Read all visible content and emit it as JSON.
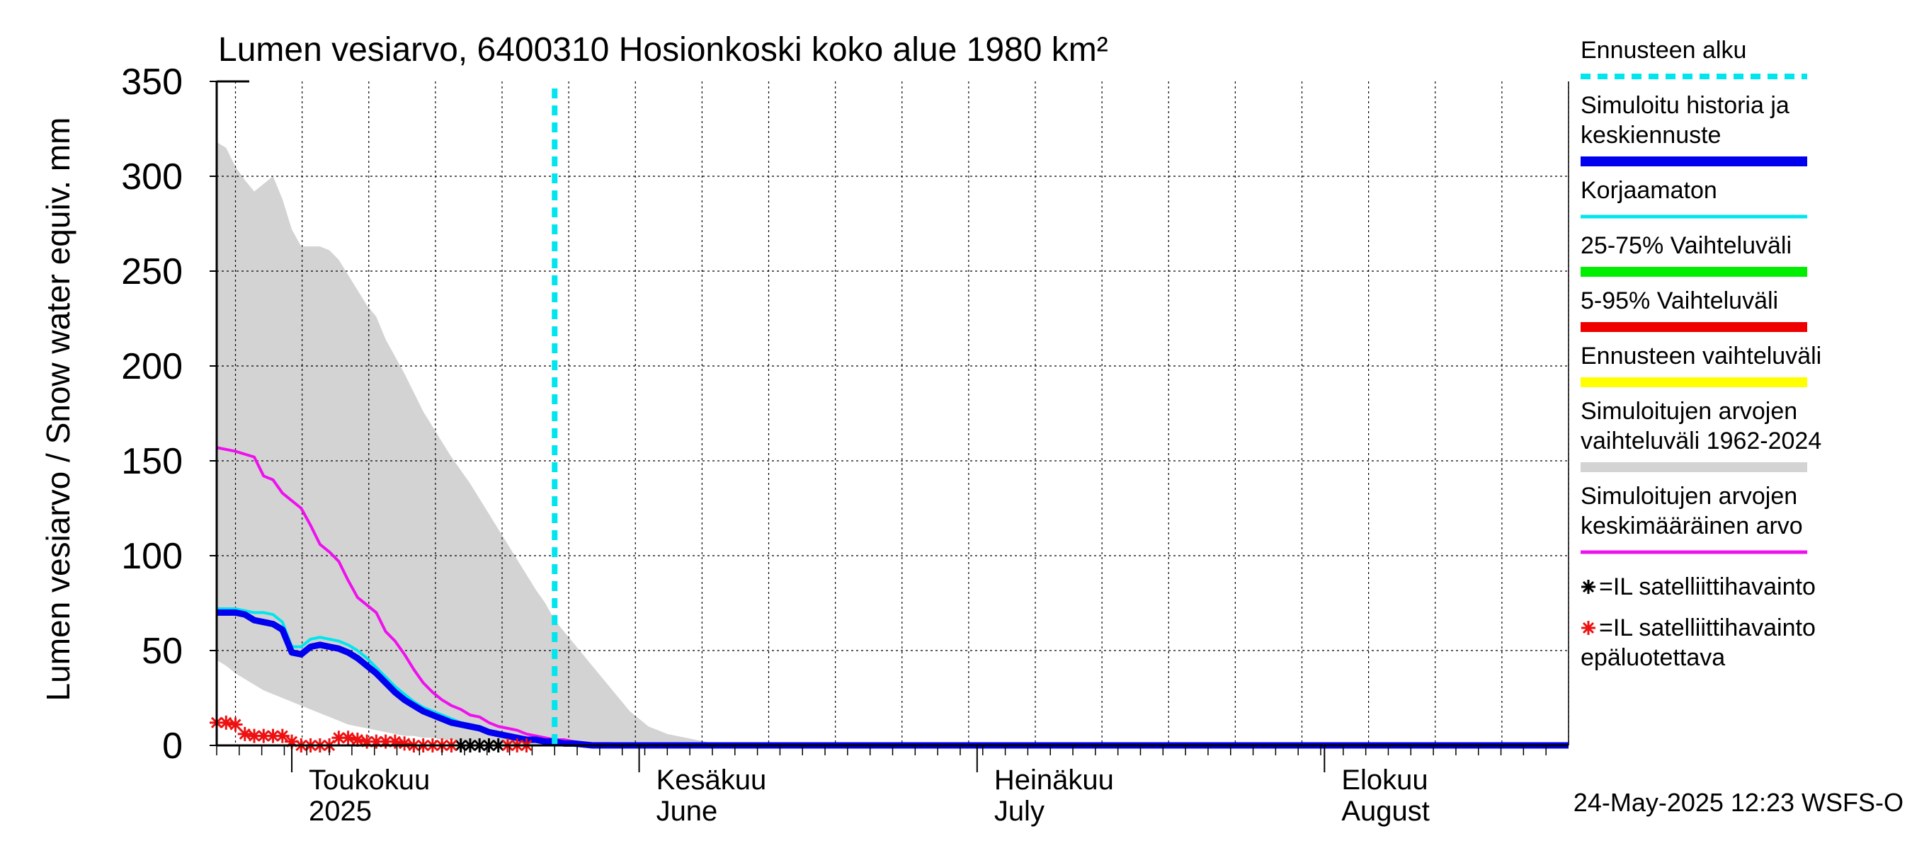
{
  "chart_data": {
    "type": "line",
    "title": "Lumen vesiarvo, 6400310 Hosionkoski koko alue 1980 km²",
    "ylabel": "Lumen vesiarvo / Snow water equiv.    mm",
    "ylim": [
      0,
      350
    ],
    "yticks": [
      0,
      50,
      100,
      150,
      200,
      250,
      300,
      350
    ],
    "xlim_days": [
      0,
      144
    ],
    "month_labels": [
      {
        "day": 8,
        "line1": "Toukokuu",
        "line2": "2025"
      },
      {
        "day": 45,
        "line1": "Kesäkuu",
        "line2": "June"
      },
      {
        "day": 81,
        "line1": "Heinäkuu",
        "line2": "July"
      },
      {
        "day": 118,
        "line1": "Elokuu",
        "line2": "August"
      }
    ],
    "forecast_start_day": 36,
    "timestamp": "24-May-2025 12:23 WSFS-O",
    "series": [
      {
        "name": "Simuloitujen arvojen vaihteluväli 1962-2024",
        "kind": "band",
        "color": "#d3d3d3",
        "x": [
          0,
          1,
          2,
          3,
          4,
          5,
          6,
          7,
          8,
          9,
          10,
          11,
          12,
          13,
          14,
          15,
          16,
          17,
          18,
          19,
          20,
          21,
          22,
          23,
          24,
          25,
          26,
          27,
          28,
          29,
          30,
          31,
          32,
          33,
          34,
          35,
          36,
          37,
          38,
          39,
          40,
          41,
          42,
          43,
          44,
          45,
          46,
          47,
          48,
          49,
          50,
          51,
          52,
          53,
          54,
          55,
          60,
          70,
          144
        ],
        "high": [
          318,
          315,
          305,
          298,
          292,
          296,
          300,
          288,
          272,
          263,
          263,
          263,
          261,
          256,
          248,
          240,
          232,
          226,
          214,
          205,
          196,
          186,
          176,
          168,
          160,
          152,
          145,
          138,
          130,
          122,
          114,
          106,
          98,
          90,
          82,
          75,
          66,
          60,
          54,
          48,
          42,
          36,
          30,
          24,
          18,
          14,
          10,
          8,
          6,
          5,
          4,
          3,
          2,
          1,
          1,
          0,
          0,
          0,
          0
        ],
        "low": [
          45,
          42,
          38,
          35,
          32,
          29,
          27,
          25,
          23,
          21,
          19,
          17,
          15,
          13,
          11,
          10,
          9,
          8,
          7,
          6,
          5,
          5,
          4,
          4,
          3,
          3,
          2,
          2,
          2,
          1,
          1,
          1,
          0,
          0,
          0,
          0,
          0,
          0,
          0,
          0,
          0,
          0,
          0,
          0,
          0,
          0,
          0,
          0,
          0,
          0,
          0,
          0,
          0,
          0,
          0,
          0,
          0,
          0,
          0
        ]
      },
      {
        "name": "Simuloitujen arvojen keskimääräinen arvo",
        "kind": "line",
        "color": "#ee11ee",
        "x": [
          0,
          2,
          4,
          5,
          6,
          7,
          8,
          9,
          10,
          11,
          12,
          13,
          14,
          15,
          16,
          17,
          18,
          19,
          20,
          21,
          22,
          23,
          24,
          25,
          26,
          27,
          28,
          29,
          30,
          31,
          32,
          33,
          34,
          35,
          36,
          37,
          38,
          40,
          42,
          44,
          46,
          50,
          144
        ],
        "y": [
          157,
          155,
          152,
          142,
          140,
          133,
          129,
          125,
          116,
          106,
          102,
          97,
          87,
          78,
          74,
          70,
          60,
          55,
          48,
          40,
          33,
          28,
          24,
          21,
          19,
          16,
          15,
          12,
          10,
          9,
          8,
          6,
          5,
          4,
          3,
          3,
          2,
          1,
          1,
          0,
          0,
          0,
          0
        ]
      },
      {
        "name": "Korjaamaton",
        "kind": "line",
        "color": "#00e5ee",
        "x": [
          0,
          2,
          3,
          4,
          5,
          6,
          7,
          8,
          9,
          10,
          11,
          12,
          13,
          14,
          15,
          16,
          17,
          18,
          19,
          20,
          21,
          22,
          23,
          24,
          25,
          26,
          27,
          28,
          29,
          30,
          31,
          32,
          33,
          34,
          35,
          36,
          37,
          38,
          40,
          42,
          44,
          46,
          50,
          144
        ],
        "y": [
          72,
          72,
          71,
          70,
          70,
          69,
          65,
          52,
          52,
          56,
          57,
          56,
          55,
          53,
          50,
          46,
          41,
          36,
          31,
          27,
          23,
          20,
          18,
          16,
          14,
          12,
          11,
          10,
          8,
          6,
          5,
          4,
          3,
          3,
          2,
          2,
          1,
          1,
          0,
          0,
          0,
          0,
          0,
          0
        ]
      },
      {
        "name": "Simuloitu historia ja keskiennuste",
        "kind": "line",
        "color": "#0000ee",
        "x": [
          0,
          2,
          3,
          4,
          5,
          6,
          7,
          8,
          9,
          10,
          11,
          12,
          13,
          14,
          15,
          16,
          17,
          18,
          19,
          20,
          21,
          22,
          23,
          24,
          25,
          26,
          27,
          28,
          29,
          30,
          31,
          32,
          33,
          34,
          35,
          36,
          37,
          38,
          40,
          42,
          44,
          46,
          50,
          144
        ],
        "y": [
          70,
          70,
          69,
          66,
          65,
          64,
          61,
          49,
          48,
          52,
          53,
          52,
          51,
          49,
          46,
          42,
          38,
          33,
          28,
          24,
          21,
          18,
          16,
          14,
          12,
          11,
          10,
          9,
          7,
          6,
          5,
          4,
          3,
          3,
          2,
          2,
          1,
          1,
          0,
          0,
          0,
          0,
          0,
          0
        ]
      },
      {
        "name": "IL satelliittihavainto",
        "kind": "markers",
        "color": "#000000",
        "x": [
          26,
          27,
          28,
          29,
          30
        ],
        "y": [
          0,
          0,
          0,
          0,
          0
        ]
      },
      {
        "name": "IL satelliittihavainto epäluotettava",
        "kind": "markers",
        "color": "#ee1111",
        "x": [
          0,
          1,
          2,
          3,
          4,
          5,
          6,
          7,
          8,
          9,
          10,
          11,
          12,
          13,
          14,
          15,
          16,
          17,
          18,
          19,
          20,
          21,
          22,
          23,
          24,
          25,
          31,
          32,
          33
        ],
        "y": [
          12,
          12,
          11,
          6,
          5,
          5,
          5,
          5,
          2,
          0,
          0,
          0,
          0,
          4,
          4,
          3,
          2,
          2,
          2,
          2,
          1,
          0,
          0,
          0,
          0,
          0,
          0,
          0,
          0
        ]
      }
    ]
  },
  "legend": {
    "items": [
      {
        "label": "Ennusteen alku",
        "color": "#00e5ee",
        "style": "dashed"
      },
      {
        "label": "Simuloitu historia ja\nkeskiennuste",
        "color": "#0000ee",
        "style": "thick"
      },
      {
        "label": "Korjaamaton",
        "color": "#00e5ee",
        "style": "thin"
      },
      {
        "label": "25-75% Vaihteluväli",
        "color": "#00ee00",
        "style": "thick"
      },
      {
        "label": "5-95% Vaihteluväli",
        "color": "#ee0000",
        "style": "thick"
      },
      {
        "label": "Ennusteen vaihteluväli",
        "color": "#ffff00",
        "style": "thick"
      },
      {
        "label": "Simuloitujen arvojen\nvaihteluväli 1962-2024",
        "color": "#d3d3d3",
        "style": "thick"
      },
      {
        "label": "Simuloitujen arvojen\nkeskimääräinen arvo",
        "color": "#ee11ee",
        "style": "thin"
      }
    ],
    "marker_black_label": "=IL satelliittihavainto",
    "marker_red_label": "=IL satelliittihavainto\nepäluotettava",
    "marker_black_color": "#000000",
    "marker_red_color": "#ee1111"
  }
}
